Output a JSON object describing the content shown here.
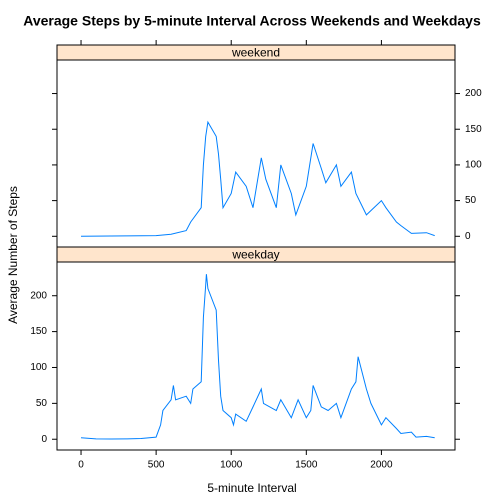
{
  "title": "Average Steps by 5-minute Interval Across Weekends and Weekdays",
  "x_label": "5-minute Interval",
  "y_label": "Average Number of Steps",
  "chart_data": [
    {
      "type": "line",
      "strip": "weekend",
      "color": "#0080ff",
      "x": [
        0,
        300,
        500,
        600,
        700,
        730,
        800,
        815,
        830,
        845,
        900,
        915,
        930,
        945,
        1000,
        1030,
        1100,
        1145,
        1200,
        1230,
        1300,
        1330,
        1400,
        1430,
        1500,
        1545,
        1600,
        1630,
        1700,
        1730,
        1800,
        1830,
        1900,
        2000,
        2030,
        2100,
        2130,
        2200,
        2300,
        2355
      ],
      "values": [
        0,
        0.5,
        1,
        3,
        8,
        20,
        40,
        100,
        140,
        160,
        140,
        115,
        80,
        40,
        60,
        90,
        70,
        40,
        110,
        80,
        40,
        100,
        60,
        30,
        70,
        130,
        95,
        75,
        100,
        70,
        90,
        60,
        30,
        50,
        40,
        20,
        15,
        4,
        5,
        1
      ],
      "xlim": [
        -160,
        2490
      ],
      "ylim": [
        -15,
        247
      ],
      "xticks": [
        0,
        500,
        1000,
        1500,
        2000
      ],
      "yticks": [
        0,
        50,
        100,
        150,
        200
      ]
    },
    {
      "type": "line",
      "strip": "weekday",
      "color": "#0080ff",
      "x": [
        0,
        100,
        200,
        300,
        400,
        500,
        530,
        545,
        600,
        615,
        630,
        700,
        730,
        745,
        800,
        815,
        830,
        835,
        845,
        900,
        915,
        930,
        945,
        1000,
        1015,
        1030,
        1100,
        1145,
        1200,
        1215,
        1300,
        1330,
        1400,
        1445,
        1500,
        1530,
        1545,
        1600,
        1645,
        1700,
        1730,
        1800,
        1830,
        1845,
        1900,
        1930,
        2000,
        2030,
        2100,
        2130,
        2200,
        2230,
        2300,
        2355
      ],
      "values": [
        2,
        0.5,
        0.3,
        0.5,
        1,
        3,
        20,
        40,
        55,
        75,
        55,
        60,
        50,
        70,
        80,
        170,
        215,
        230,
        210,
        180,
        110,
        60,
        40,
        30,
        20,
        35,
        25,
        45,
        70,
        50,
        40,
        55,
        30,
        55,
        30,
        40,
        75,
        45,
        40,
        50,
        30,
        70,
        80,
        115,
        70,
        50,
        20,
        30,
        15,
        8,
        10,
        3,
        4,
        2
      ],
      "xlim": [
        -160,
        2490
      ],
      "ylim": [
        -15,
        247
      ],
      "xticks": [
        0,
        500,
        1000,
        1500,
        2000
      ],
      "yticks": [
        0,
        50,
        100,
        150,
        200
      ]
    }
  ]
}
